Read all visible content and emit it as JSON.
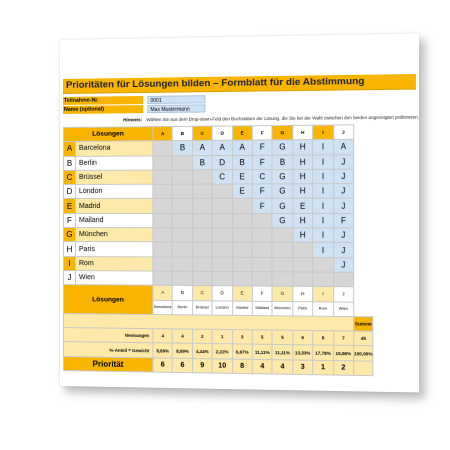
{
  "title": "Prioritäten für Lösungen bilden –  Formblatt für die Abstimmung",
  "fields": [
    {
      "label": "Teilnahme-Nr.",
      "value": "0001"
    },
    {
      "label": "Name (optional)",
      "value": "Max Mustermann"
    }
  ],
  "hint": {
    "label": "Hinweis:",
    "text": "Wählen Sie aus dem Drop-down-Feld den Buchstaben der Lösung, die Sie bei der Wahl zwischen den beiden angezeigten präferieren."
  },
  "solutions_header": "Lösungen",
  "column_letters": [
    "A",
    "B",
    "C",
    "D",
    "E",
    "F",
    "G",
    "H",
    "I",
    "J"
  ],
  "rows": [
    {
      "letter": "A",
      "name": "Barcelona",
      "choices": [
        "B",
        "A",
        "A",
        "A",
        "F",
        "G",
        "H",
        "I",
        "A"
      ]
    },
    {
      "letter": "B",
      "name": "Berlin",
      "choices": [
        "B",
        "D",
        "B",
        "F",
        "B",
        "H",
        "I",
        "J"
      ]
    },
    {
      "letter": "C",
      "name": "Brüssel",
      "choices": [
        "C",
        "E",
        "C",
        "G",
        "H",
        "I",
        "J"
      ]
    },
    {
      "letter": "D",
      "name": "London",
      "choices": [
        "E",
        "F",
        "G",
        "H",
        "I",
        "J"
      ]
    },
    {
      "letter": "E",
      "name": "Madrid",
      "choices": [
        "F",
        "G",
        "E",
        "I",
        "J"
      ]
    },
    {
      "letter": "F",
      "name": "Mailand",
      "choices": [
        "G",
        "H",
        "I",
        "F"
      ]
    },
    {
      "letter": "G",
      "name": "München",
      "choices": [
        "H",
        "I",
        "J"
      ]
    },
    {
      "letter": "H",
      "name": "Paris",
      "choices": [
        "I",
        "J"
      ]
    },
    {
      "letter": "I",
      "name": "Rom",
      "choices": [
        "J"
      ]
    },
    {
      "letter": "J",
      "name": "Wien",
      "choices": []
    }
  ],
  "bottom": {
    "header": "Lösungen",
    "letters": [
      "A",
      "B",
      "C",
      "D",
      "E",
      "F",
      "G",
      "H",
      "I",
      "J"
    ],
    "names": [
      "Barcelona",
      "Berlin",
      "Brüssel",
      "London",
      "Madrid",
      "Mailand",
      "München",
      "Paris",
      "Rom",
      "Wien"
    ],
    "summe_label": "Summe",
    "summe_value": "45",
    "nennungen_label": "Nennungen",
    "nennungen": [
      "4",
      "4",
      "2",
      "1",
      "3",
      "5",
      "5",
      "6",
      "8",
      "7"
    ],
    "anteil_label": "%-Anteil = Gewicht",
    "anteil": [
      "8,89%",
      "8,89%",
      "4,44%",
      "2,22%",
      "6,67%",
      "11,11%",
      "11,11%",
      "13,33%",
      "17,78%",
      "15,56%"
    ],
    "anteil_total": "100,00%",
    "prioritaet_label": "Priorität",
    "prioritaet": [
      "6",
      "6",
      "9",
      "10",
      "8",
      "4",
      "4",
      "3",
      "1",
      "2"
    ]
  }
}
